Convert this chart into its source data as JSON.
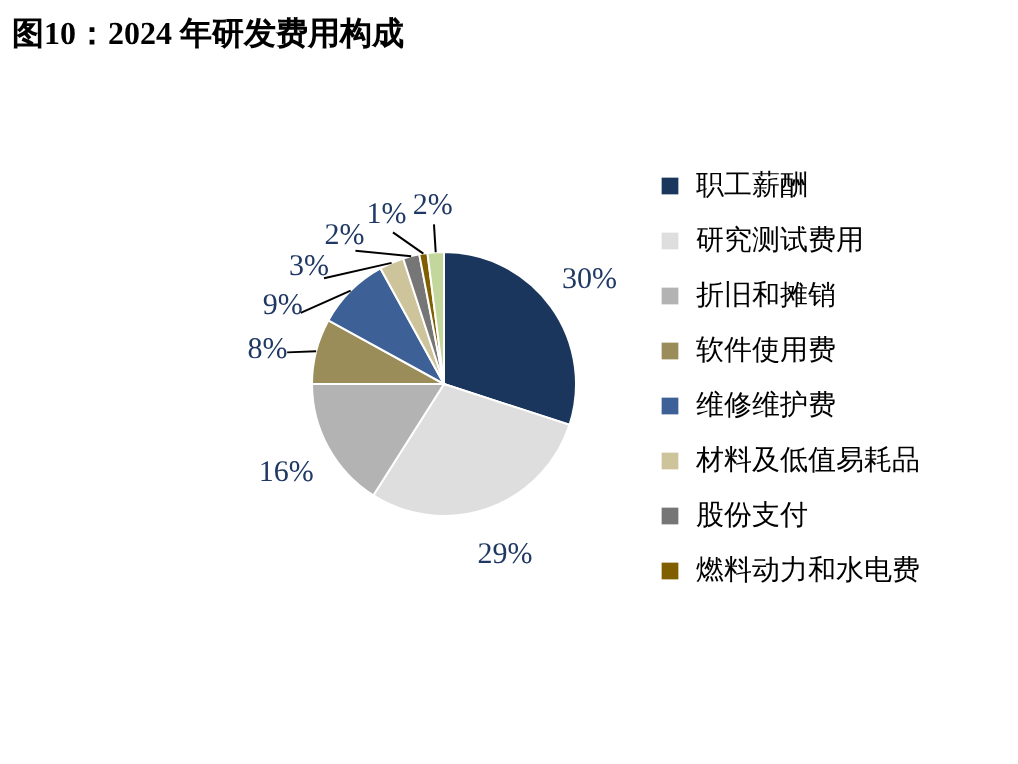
{
  "chart_data": {
    "type": "pie",
    "title": "图10：2024 年研发费用构成",
    "categories": [
      "职工薪酬",
      "研究测试费用",
      "折旧和摊销",
      "软件使用费",
      "维修维护费",
      "材料及低值易耗品",
      "股份支付",
      "燃料动力和水电费",
      null
    ],
    "values": [
      30,
      29,
      16,
      8,
      9,
      3,
      2,
      1,
      2
    ],
    "value_labels": [
      "30%",
      "29%",
      "16%",
      "8%",
      "9%",
      "3%",
      "2%",
      "1%",
      "2%"
    ],
    "colors": [
      "#1b365d",
      "#dedede",
      "#b3b3b3",
      "#9a8d5a",
      "#3d6096",
      "#cdc49c",
      "#767676",
      "#7f5f00",
      "#c3d69b"
    ],
    "legend": "right"
  }
}
